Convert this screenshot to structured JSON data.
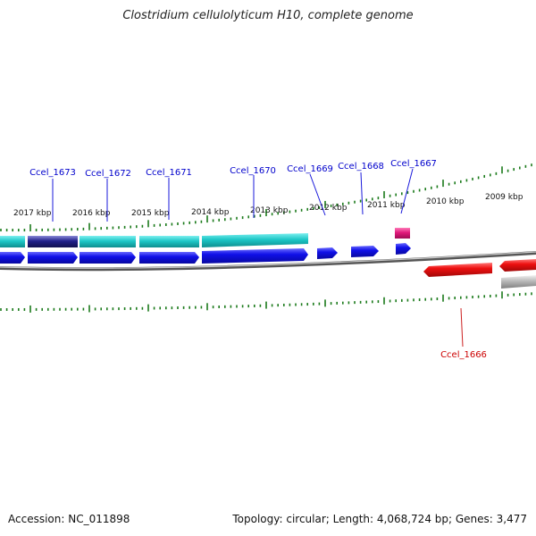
{
  "title": "Clostridium cellulolyticum H10, complete genome",
  "footer": {
    "accession": "Accession: NC_011898",
    "info": "Topology: circular; Length: 4,068,724 bp; Genes: 3,477"
  },
  "colors": {
    "forward_cds": "#1010e8",
    "reverse_cds": "#ee1010",
    "forward_gene": "#1cc6c6",
    "reverse_gene": "#b8b8b8",
    "selected_gene": "#20208a",
    "rna": "#e0187a",
    "tick": "#1a7a1a",
    "label_forward": "#0000cc",
    "label_reverse": "#cc0000",
    "backbone": "#888888"
  },
  "kbp_labels": [
    "2017 kbp",
    "2016 kbp",
    "2015 kbp",
    "2014 kbp",
    "2013 kbp",
    "2012 kbp",
    "2011 kbp",
    "2010 kbp",
    "2009 kbp"
  ],
  "gene_labels": {
    "forward": [
      "Ccel_1673",
      "Ccel_1672",
      "Ccel_1671",
      "Ccel_1670",
      "Ccel_1669",
      "Ccel_1668",
      "Ccel_1667"
    ],
    "reverse": [
      "Ccel_1666"
    ]
  }
}
